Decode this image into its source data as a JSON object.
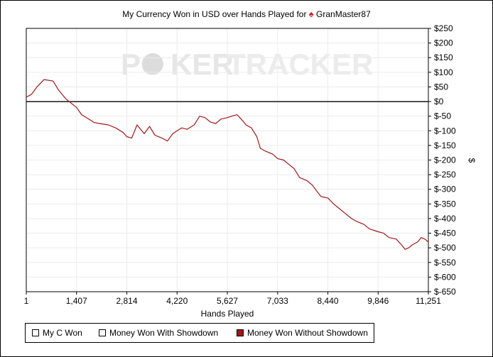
{
  "header": {
    "title_text": "My Currency Won in USD over Hands Played for",
    "player": "GranMaster87",
    "spade_icon": "♠"
  },
  "watermark": {
    "left": "PO",
    "middle": "KER",
    "right": "TRACKER"
  },
  "chart_data": {
    "type": "line",
    "xlabel": "Hands Played",
    "ylabel": "$",
    "xlim": [
      1,
      11251
    ],
    "ylim": [
      -650,
      250
    ],
    "x_ticks": [
      1,
      1407,
      2814,
      4220,
      5627,
      7033,
      8440,
      9846,
      11251
    ],
    "x_tick_labels": [
      "1",
      "1,407",
      "2,814",
      "4,220",
      "5,627",
      "7,033",
      "8,440",
      "9,846",
      "11,251"
    ],
    "y_ticks": [
      250,
      200,
      150,
      100,
      50,
      0,
      -50,
      -100,
      -150,
      -200,
      -250,
      -300,
      -350,
      -400,
      -450,
      -500,
      -550,
      -600,
      -650
    ],
    "y_tick_labels": [
      "$250",
      "$200",
      "$150",
      "$100",
      "$50",
      "$0",
      "$-50",
      "$-100",
      "$-150",
      "$-200",
      "$-250",
      "$-300",
      "$-350",
      "$-400",
      "$-450",
      "$-500",
      "$-550",
      "$-600",
      "$-650"
    ],
    "grid": true,
    "legend_position": "bottom",
    "series": [
      {
        "name": "My C Won",
        "color": "#ffffff",
        "x": [
          1,
          11251
        ],
        "y": [
          0,
          0
        ]
      },
      {
        "name": "Money Won With Showdown",
        "color": "#ffffff",
        "x": [
          1,
          11251
        ],
        "y": [
          0,
          0
        ]
      },
      {
        "name": "Money Won Without Showdown",
        "color": "#a01919",
        "x": [
          1,
          150,
          300,
          500,
          750,
          900,
          1100,
          1250,
          1407,
          1550,
          1750,
          1900,
          2050,
          2300,
          2500,
          2700,
          2814,
          2950,
          3100,
          3300,
          3450,
          3600,
          3800,
          3950,
          4100,
          4220,
          4350,
          4500,
          4700,
          4850,
          5000,
          5150,
          5300,
          5450,
          5627,
          5750,
          5900,
          6050,
          6150,
          6300,
          6450,
          6550,
          6700,
          6900,
          7033,
          7200,
          7350,
          7500,
          7650,
          7850,
          8000,
          8150,
          8250,
          8440,
          8600,
          8750,
          8900,
          9100,
          9250,
          9450,
          9600,
          9846,
          10000,
          10150,
          10350,
          10500,
          10600,
          10700,
          10800,
          10950,
          11050,
          11150,
          11251
        ],
        "y": [
          15,
          25,
          50,
          75,
          70,
          40,
          10,
          -5,
          -20,
          -45,
          -60,
          -72,
          -75,
          -80,
          -90,
          -105,
          -120,
          -125,
          -80,
          -110,
          -85,
          -115,
          -125,
          -135,
          -110,
          -100,
          -90,
          -95,
          -80,
          -50,
          -55,
          -70,
          -75,
          -60,
          -55,
          -50,
          -45,
          -65,
          -80,
          -90,
          -120,
          -160,
          -170,
          -180,
          -195,
          -200,
          -215,
          -230,
          -260,
          -270,
          -285,
          -310,
          -325,
          -330,
          -350,
          -365,
          -380,
          -400,
          -410,
          -420,
          -435,
          -445,
          -450,
          -465,
          -470,
          -490,
          -505,
          -500,
          -490,
          -480,
          -465,
          -470,
          -480
        ]
      }
    ]
  }
}
